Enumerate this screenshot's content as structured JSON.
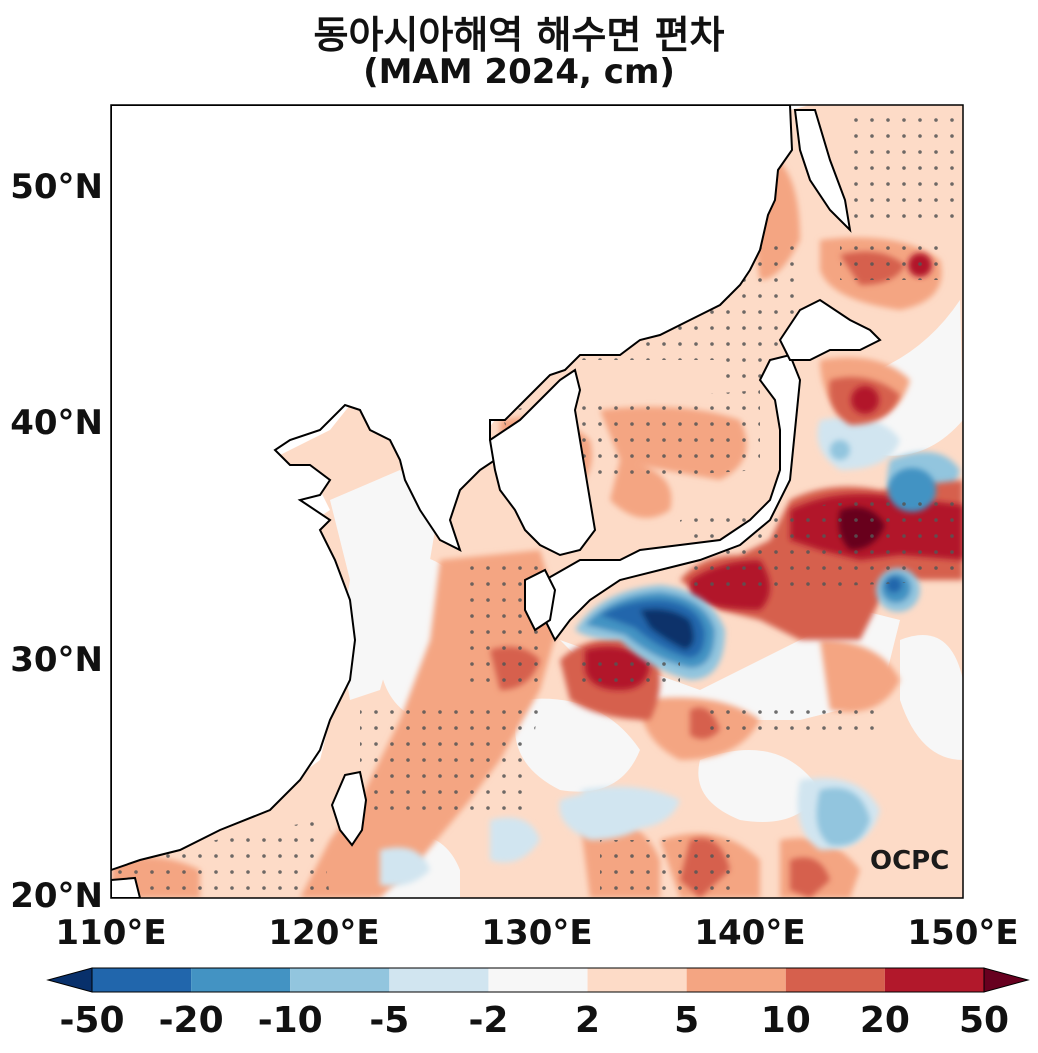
{
  "title": {
    "line1": "동아시아해역 해수면 편차",
    "line2": "(MAM 2024, cm)"
  },
  "axes": {
    "y_ticks": [
      "50°N",
      "40°N",
      "30°N",
      "20°N"
    ],
    "x_ticks": [
      "110°E",
      "120°E",
      "130°E",
      "140°E",
      "150°E"
    ],
    "lon_range": [
      110,
      150
    ],
    "lat_range": [
      20,
      53.5
    ]
  },
  "colorbar": {
    "labels": [
      "-50",
      "-20",
      "-10",
      "-5",
      "-2",
      "2",
      "5",
      "10",
      "20",
      "50"
    ],
    "colors": [
      "#08306b",
      "#2166ac",
      "#4393c3",
      "#92c5de",
      "#d1e5f0",
      "#f7f7f7",
      "#fddbc7",
      "#f4a582",
      "#d6604d",
      "#b2182b",
      "#67001f"
    ]
  },
  "logo": "OCPC"
}
